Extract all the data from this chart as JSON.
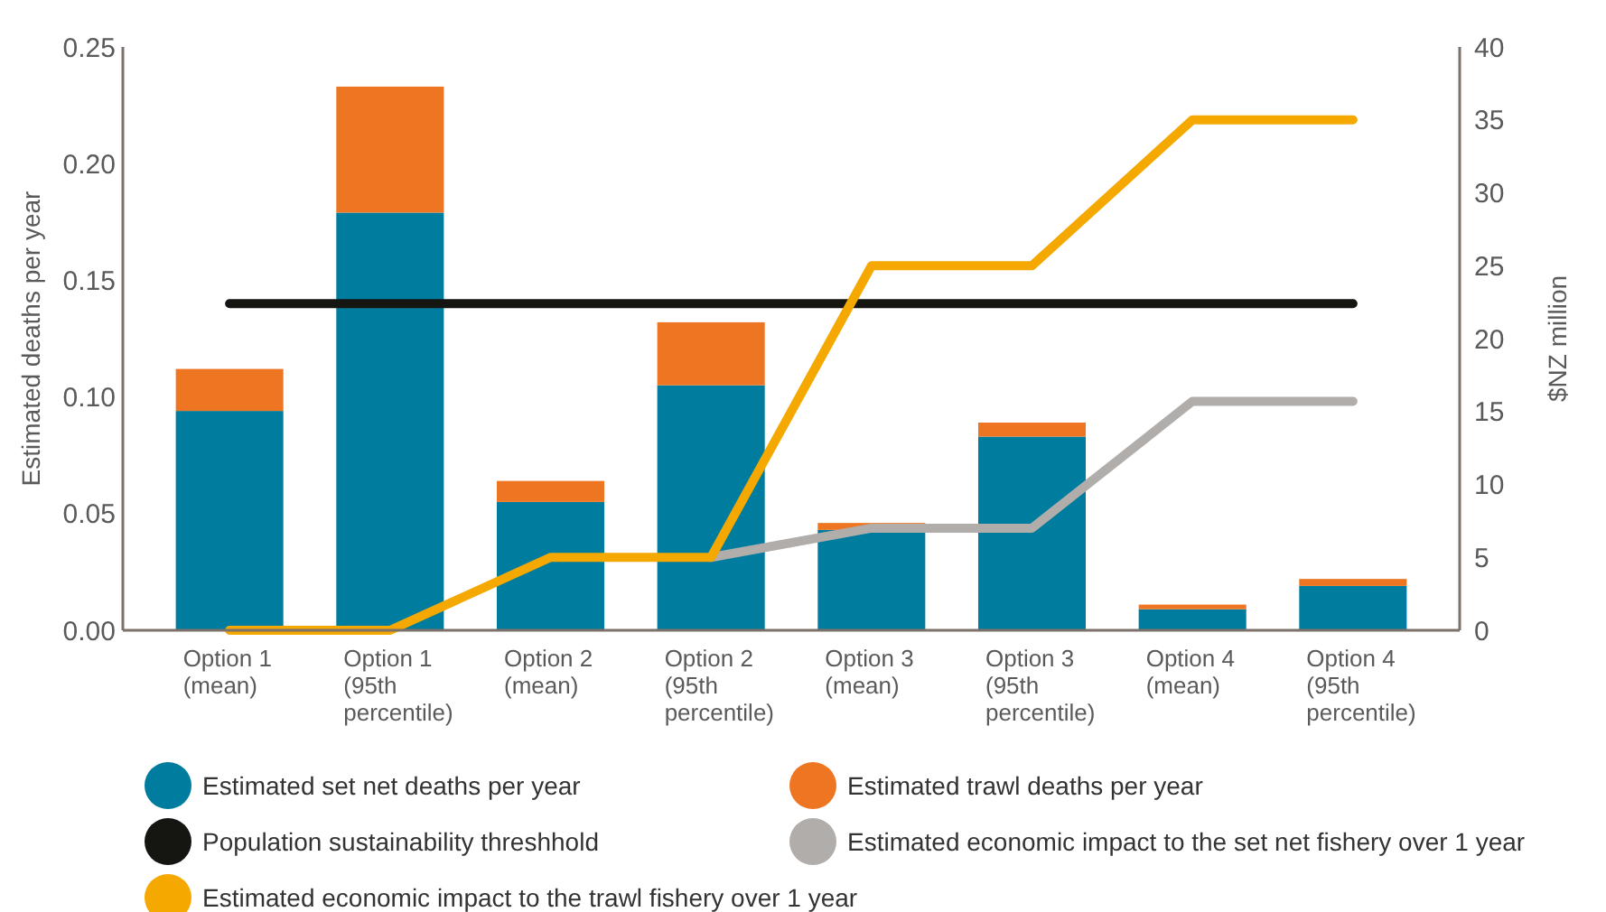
{
  "chart_data": {
    "type": "bar",
    "stacked": true,
    "ylabel": "Estimated deaths per year",
    "y2label": "$NZ million",
    "categories": [
      "Option 1 (mean)",
      "Option 1 (95th percentile)",
      "Option 2 (mean)",
      "Option 2 (95th percentile)",
      "Option 3 (mean)",
      "Option 3 (95th percentile)",
      "Option 4 (mean)",
      "Option 4 (95th percentile)"
    ],
    "series": [
      {
        "name": "Estimated set net deaths per year",
        "color": "#007c9e",
        "values": [
          0.094,
          0.179,
          0.055,
          0.105,
          0.043,
          0.083,
          0.009,
          0.019
        ]
      },
      {
        "name": "Estimated trawl deaths per year",
        "color": "#ee7623",
        "values": [
          0.018,
          0.054,
          0.009,
          0.027,
          0.003,
          0.006,
          0.002,
          0.003
        ]
      },
      {
        "name": "Population sustainability threshhold",
        "type": "line",
        "color": "#151512",
        "values": [
          0.14,
          0.14,
          0.14,
          0.14,
          0.14,
          0.14,
          0.14,
          0.14
        ]
      },
      {
        "name": "Estimated economic impact to the set net fishery over 1 year",
        "type": "line",
        "axis": "y2",
        "color": "#b0adab",
        "values": [
          null,
          null,
          null,
          5,
          7,
          7,
          15.7,
          15.7
        ]
      },
      {
        "name": "Estimated economic impact to the trawl fishery over 1 year",
        "type": "line",
        "axis": "y2",
        "color": "#f5a800",
        "values": [
          0,
          0,
          5,
          5,
          25,
          25,
          35,
          35
        ]
      }
    ],
    "ylim": [
      0,
      0.25
    ],
    "yticks": [
      {
        "value": 0,
        "label": "0.00"
      },
      {
        "value": 0.05,
        "label": "0.05"
      },
      {
        "value": 0.1,
        "label": "0.10"
      },
      {
        "value": 0.15,
        "label": "0.15"
      },
      {
        "value": 0.2,
        "label": "0.20"
      },
      {
        "value": 0.25,
        "label": "0.25"
      }
    ],
    "y2lim": [
      0,
      40
    ],
    "y2ticks": [
      0,
      5,
      10,
      15,
      20,
      25,
      30,
      35,
      40
    ],
    "grid": false,
    "legend": "bottom",
    "line_style": "solid",
    "marker": "none"
  }
}
